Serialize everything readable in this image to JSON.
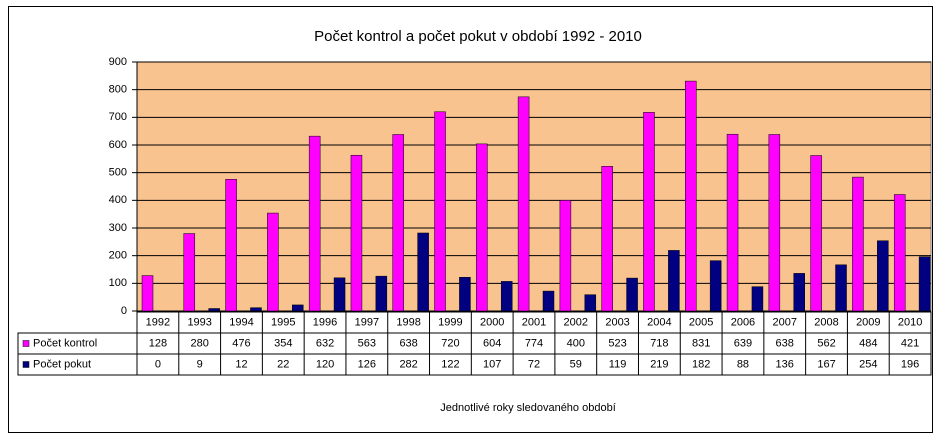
{
  "chart_data": {
    "type": "bar",
    "title": "Počet kontrol a počet pokut v období 1992 - 2010",
    "x_label": "Jednotlivé roky sledovaného období",
    "categories": [
      "1992",
      "1993",
      "1994",
      "1995",
      "1996",
      "1997",
      "1998",
      "1999",
      "2000",
      "2001",
      "2002",
      "2003",
      "2004",
      "2005",
      "2006",
      "2007",
      "2008",
      "2009",
      "2010"
    ],
    "series": [
      {
        "name": "Počet kontrol",
        "color": "#ff00ff",
        "values": [
          128,
          280,
          476,
          354,
          632,
          563,
          638,
          720,
          604,
          774,
          400,
          523,
          718,
          831,
          639,
          638,
          562,
          484,
          421
        ]
      },
      {
        "name": "Počet pokut",
        "color": "#000080",
        "values": [
          0,
          9,
          12,
          22,
          120,
          126,
          282,
          122,
          107,
          72,
          59,
          119,
          219,
          182,
          88,
          136,
          167,
          254,
          196
        ]
      }
    ],
    "ylim": [
      0,
      900
    ],
    "yticks": [
      0,
      100,
      200,
      300,
      400,
      500,
      600,
      700,
      800,
      900
    ],
    "grid": true,
    "plot_background": "#f9c390",
    "data_table": true
  }
}
